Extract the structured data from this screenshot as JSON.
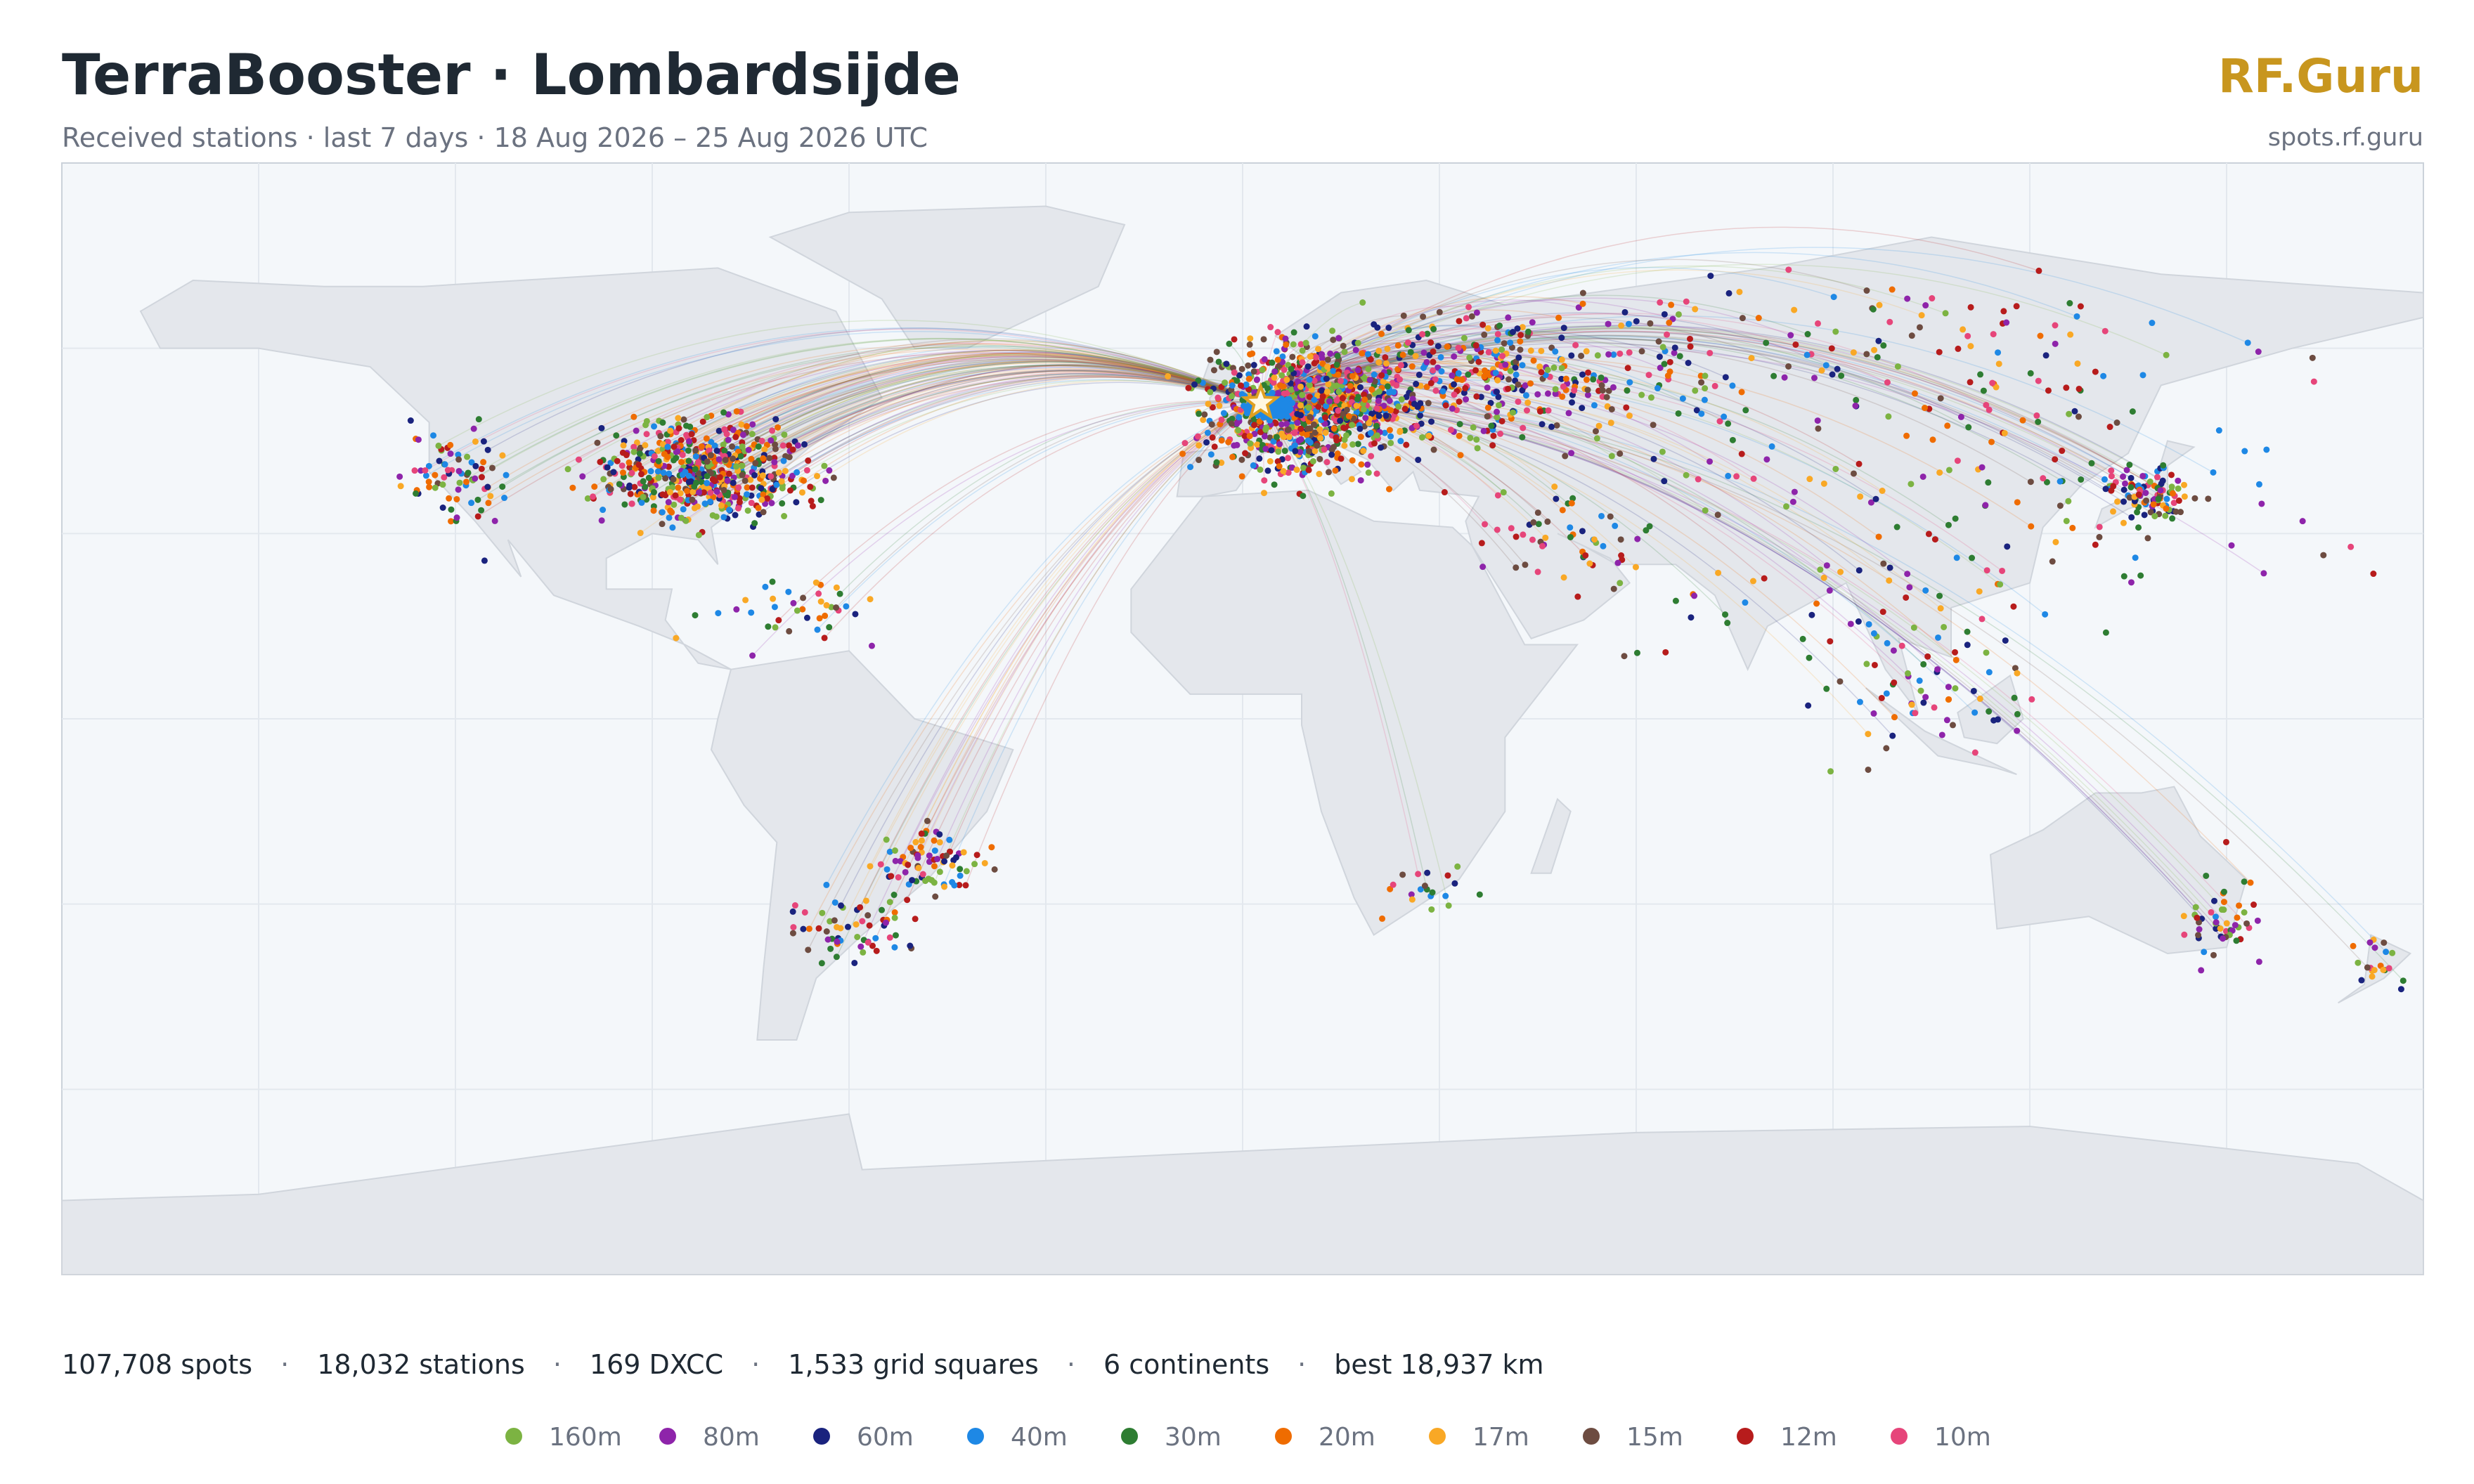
{
  "header": {
    "title": "TerraBooster · Lombardsijde",
    "subtitle": "Received stations · last 7 days · 18 Aug 2026 – 25 Aug 2026 UTC",
    "brand": "RF.Guru",
    "url": "spots.rf.guru"
  },
  "stats": {
    "items": [
      "107,708 spots",
      "18,032 stations",
      "169 DXCC",
      "1,533 grid squares",
      "6 continents",
      "best 18,937 km"
    ],
    "separator": "·"
  },
  "legend": {
    "bands": [
      {
        "name": "160m",
        "color": "#7cb342"
      },
      {
        "name": "80m",
        "color": "#8e24aa"
      },
      {
        "name": "60m",
        "color": "#1a237e"
      },
      {
        "name": "40m",
        "color": "#1e88e5"
      },
      {
        "name": "30m",
        "color": "#2e7d32"
      },
      {
        "name": "20m",
        "color": "#ef6c00"
      },
      {
        "name": "17m",
        "color": "#f9a825"
      },
      {
        "name": "15m",
        "color": "#6d4c41"
      },
      {
        "name": "12m",
        "color": "#b71c1c"
      },
      {
        "name": "10m",
        "color": "#e6457a"
      }
    ]
  }
}
